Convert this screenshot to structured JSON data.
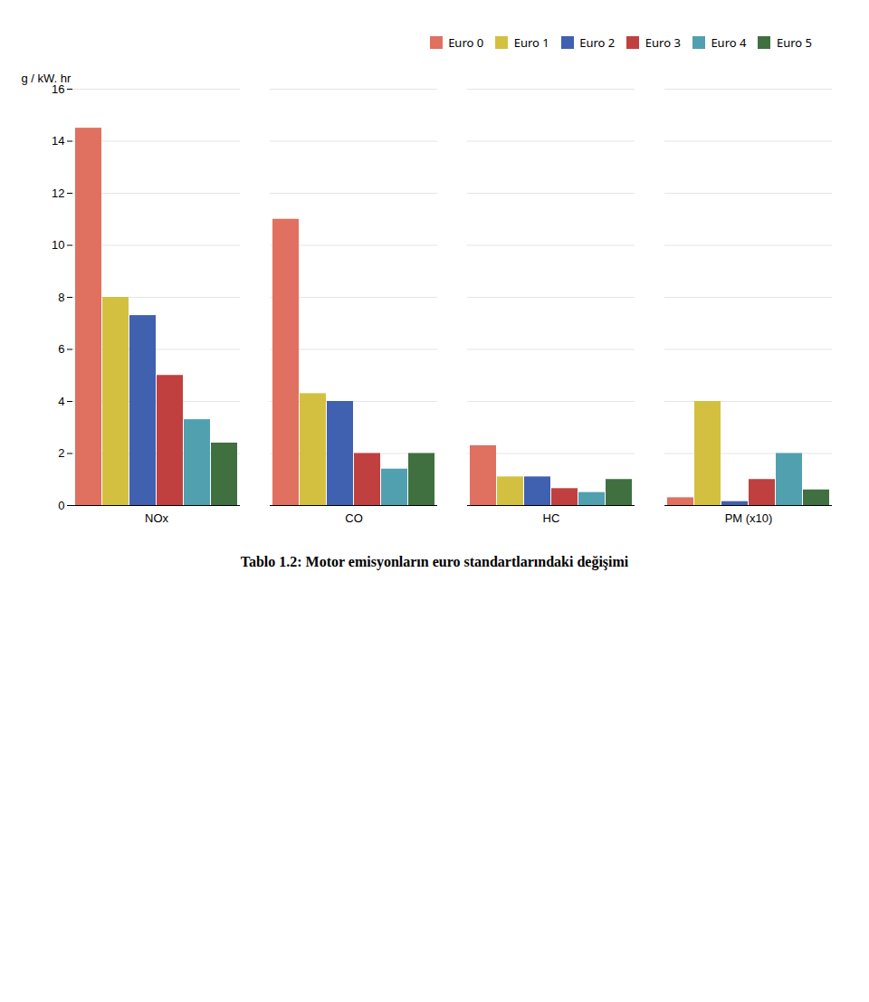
{
  "chart_data": {
    "type": "bar",
    "title": "Tablo 1.2: Motor emisyonların euro standartlarındaki değişimi",
    "categories": [
      "NOx",
      "CO",
      "HC",
      "PM (x10)"
    ],
    "ylabel": "g / kW. hr",
    "series": [
      {
        "name": "Euro 0",
        "color": "#E07060",
        "values": [
          14.5,
          11.0,
          2.3,
          0.3
        ]
      },
      {
        "name": "Euro 1",
        "color": "#D4C040",
        "values": [
          8.0,
          4.3,
          1.1,
          4.0
        ]
      },
      {
        "name": "Euro 2",
        "color": "#4060B0",
        "values": [
          7.3,
          4.0,
          1.1,
          0.15
        ]
      },
      {
        "name": "Euro 3",
        "color": "#C04040",
        "values": [
          5.0,
          2.0,
          0.65,
          1.0
        ]
      },
      {
        "name": "Euro 4",
        "color": "#50A0B0",
        "values": [
          3.3,
          1.4,
          0.5,
          2.0
        ]
      },
      {
        "name": "Euro 5",
        "color": "#407040",
        "values": [
          2.4,
          2.0,
          1.0,
          0.6
        ]
      }
    ],
    "ylim": [
      0,
      16
    ],
    "yticks": [
      0,
      2,
      4,
      6,
      8,
      10,
      12,
      14,
      16
    ],
    "grid": true,
    "legend": "upper right"
  }
}
